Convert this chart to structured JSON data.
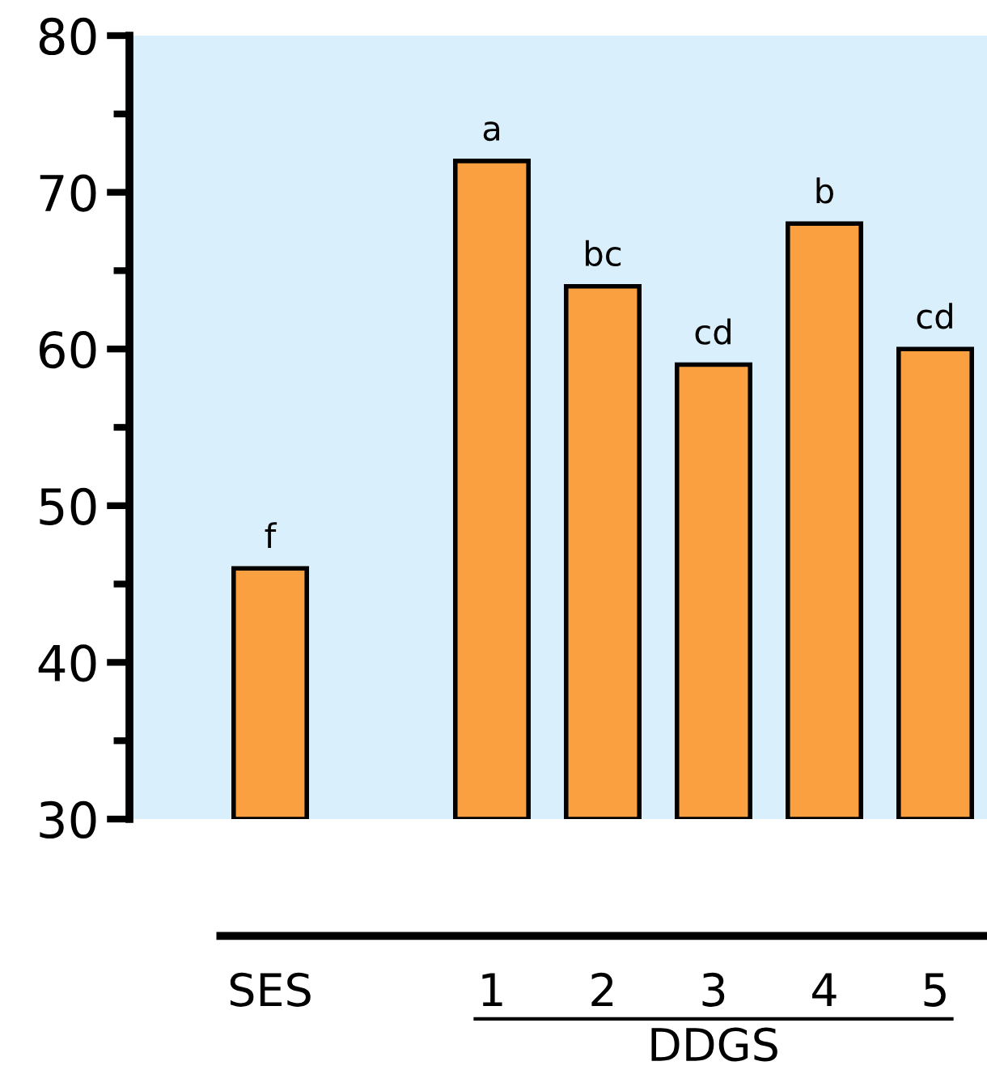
{
  "chart_data": {
    "type": "bar",
    "categories": [
      "SES",
      null,
      "1",
      "2",
      "3",
      "4",
      "5"
    ],
    "values": [
      46,
      null,
      72,
      64,
      59,
      68,
      60
    ],
    "color": "#fba040",
    "ylim": [
      30,
      80
    ],
    "yticks": [
      30,
      {
        "value": 35,
        "label": null
      },
      40,
      {
        "value": 45,
        "label": null
      },
      50,
      {
        "value": 55,
        "label": null
      },
      60,
      {
        "value": 65,
        "label": null
      },
      70,
      {
        "value": 75,
        "label": null
      },
      80
    ],
    "annotations": [
      {
        "text": "f",
        "x": "SES",
        "y": 46
      },
      {
        "text": "a",
        "x": "1",
        "y": 72
      },
      {
        "text": "bc",
        "x": "2",
        "y": 64
      },
      {
        "text": "cd",
        "x": "3",
        "y": 59
      },
      {
        "text": "b",
        "x": "4",
        "y": 68
      },
      {
        "text": "cd",
        "x": "5",
        "y": 60
      },
      "DDGS"
    ]
  }
}
